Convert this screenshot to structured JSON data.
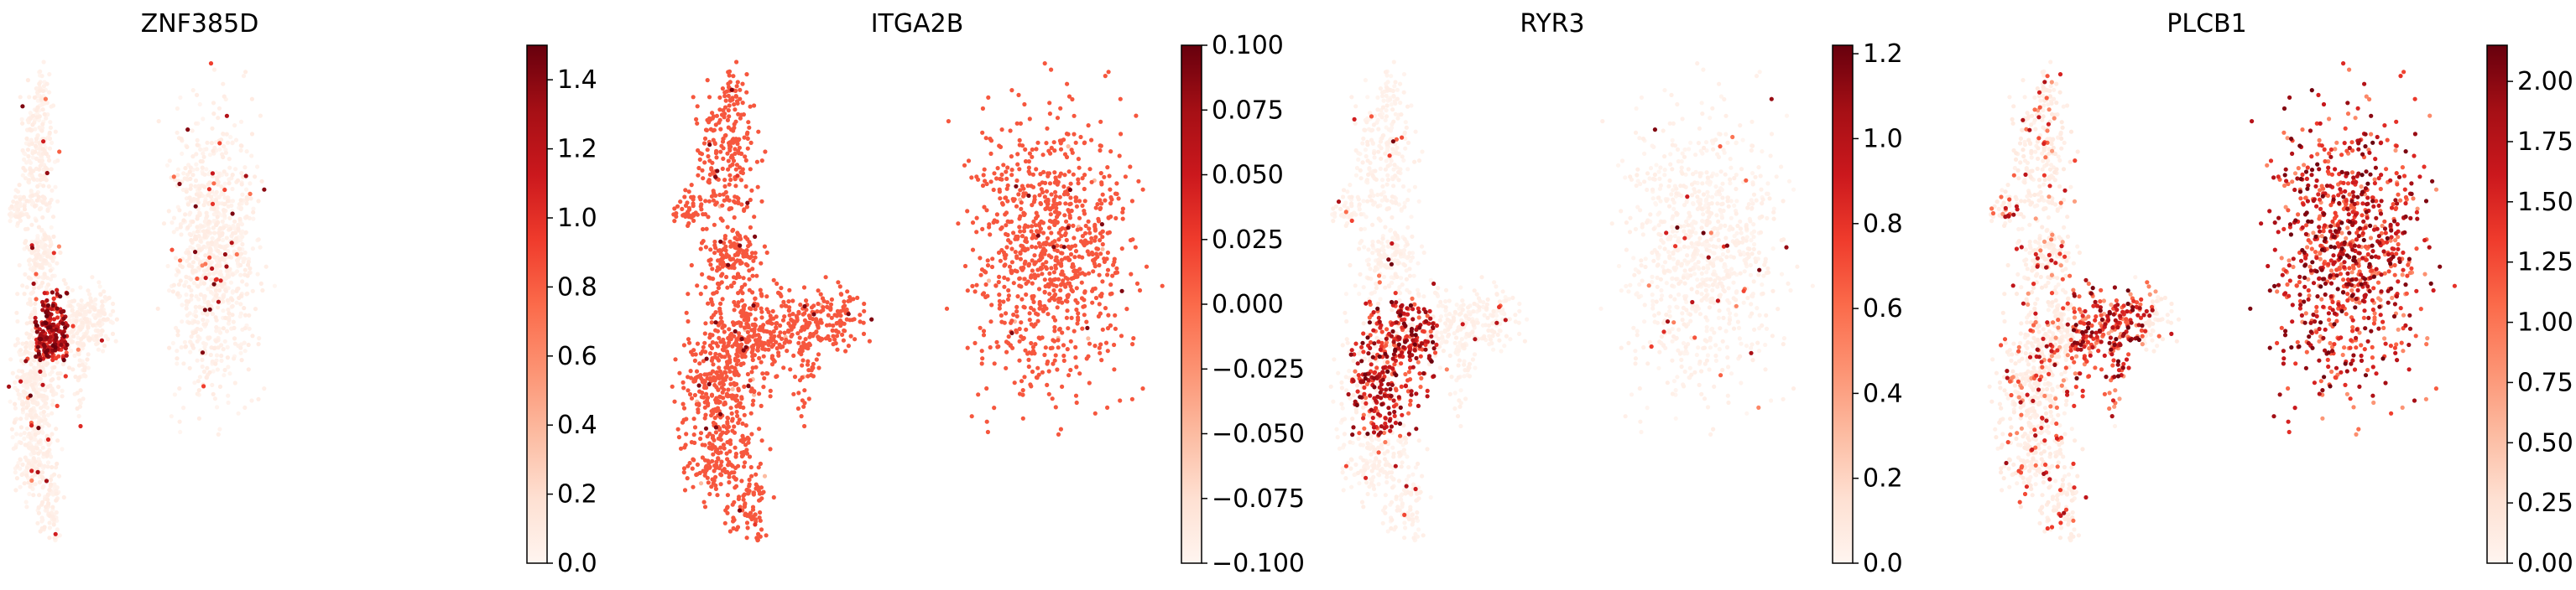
{
  "chart_data": [
    {
      "type": "scatter",
      "title": "ZNF385D",
      "colormap": "Reds",
      "color_range": [
        0.0,
        1.5
      ],
      "colorbar_ticks": [
        "0.0",
        "0.2",
        "0.4",
        "0.6",
        "0.8",
        "1.0",
        "1.2",
        "1.4"
      ],
      "colorbar_tick_values": [
        0.0,
        0.2,
        0.4,
        0.6,
        0.8,
        1.0,
        1.2,
        1.4
      ],
      "pattern": "sparse",
      "hotspot": "bridge",
      "base_level": 0.04,
      "grid": false
    },
    {
      "type": "scatter",
      "title": "ITGA2B",
      "colormap": "Reds",
      "color_range": [
        -0.1,
        0.1
      ],
      "colorbar_ticks": [
        "0.100",
        "0.075",
        "0.050",
        "0.025",
        "0.000",
        "−0.025",
        "−0.050",
        "−0.075",
        "−0.100"
      ],
      "colorbar_tick_values": [
        0.1,
        0.075,
        0.05,
        0.025,
        0.0,
        -0.025,
        -0.05,
        -0.075,
        -0.1
      ],
      "pattern": "uniform",
      "hotspot": "none",
      "base_level": 0.0,
      "grid": false
    },
    {
      "type": "scatter",
      "title": "RYR3",
      "colormap": "Reds",
      "color_range": [
        0.0,
        1.22
      ],
      "colorbar_ticks": [
        "0.0",
        "0.2",
        "0.4",
        "0.6",
        "0.8",
        "1.0",
        "1.2"
      ],
      "colorbar_tick_values": [
        0.0,
        0.2,
        0.4,
        0.6,
        0.8,
        1.0,
        1.2
      ],
      "pattern": "sparse",
      "hotspot": "lowerleft",
      "base_level": 0.03,
      "grid": false
    },
    {
      "type": "scatter",
      "title": "PLCB1",
      "colormap": "Reds",
      "color_range": [
        0.0,
        2.15
      ],
      "colorbar_ticks": [
        "0.00",
        "0.25",
        "0.50",
        "0.75",
        "1.00",
        "1.25",
        "1.50",
        "1.75",
        "2.00"
      ],
      "colorbar_tick_values": [
        0.0,
        0.25,
        0.5,
        0.75,
        1.0,
        1.25,
        1.5,
        1.75,
        2.0
      ],
      "pattern": "dense_right",
      "hotspot": "middle",
      "base_level": 0.05,
      "grid": false
    }
  ]
}
